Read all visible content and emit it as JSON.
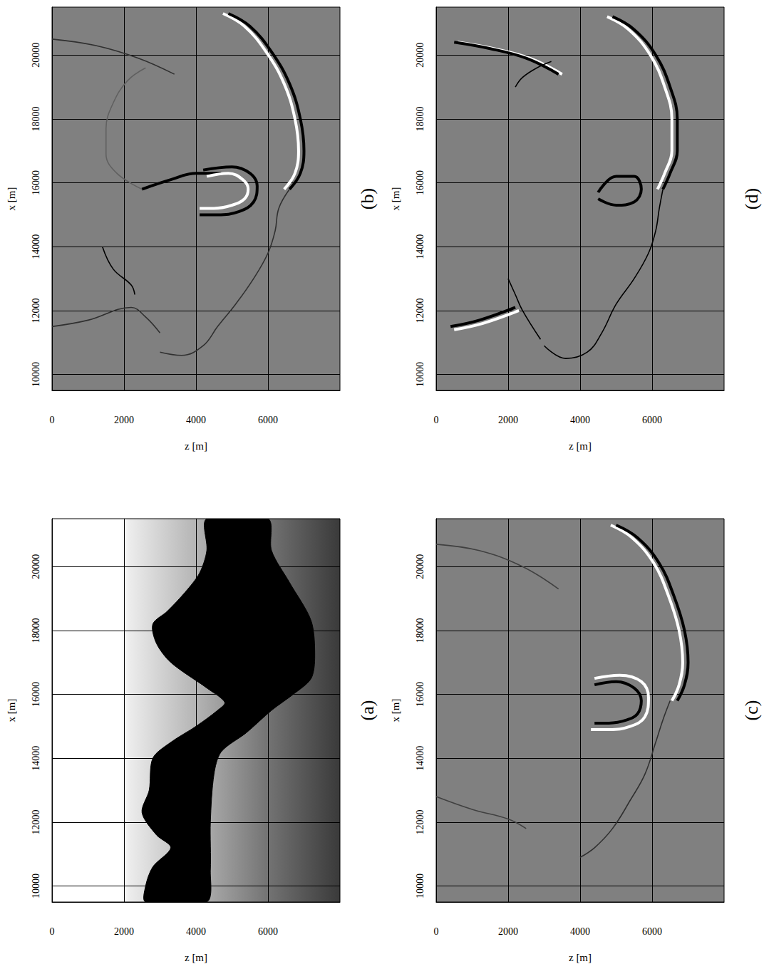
{
  "chart_data": [
    {
      "type": "area",
      "title": "(a)",
      "xlabel": "z [m]",
      "ylabel": "x [m]",
      "xlim": [
        0,
        8000
      ],
      "ylim": [
        9500,
        21500
      ],
      "xticks": [
        0,
        2000,
        4000,
        6000
      ],
      "yticks": [
        10000,
        12000,
        14000,
        16000,
        18000,
        20000
      ],
      "grid": true,
      "series": [
        {
          "color": "#000000",
          "x": [
            4300,
            6000,
            6100,
            6600,
            7200,
            7300,
            7200,
            6700,
            6100,
            5400,
            4700,
            4500,
            4400,
            4400,
            4300,
            2600,
            2600,
            2800,
            3300,
            2900,
            2500,
            2700,
            2800,
            3300,
            4000,
            4600,
            4800,
            4300,
            3300,
            2900,
            2800,
            3200,
            3700,
            4100,
            4300
          ],
          "values": [
            21500,
            21500,
            20500,
            19500,
            18300,
            17200,
            16500,
            16000,
            15500,
            14800,
            14200,
            13500,
            12000,
            10500,
            9500,
            9500,
            10000,
            10600,
            11200,
            11600,
            12300,
            13000,
            14000,
            14500,
            15000,
            15500,
            15750,
            16200,
            17000,
            17600,
            18200,
            18600,
            19200,
            19800,
            20500
          ]
        }
      ]
    },
    {
      "type": "line",
      "title": "(b)",
      "xlabel": "z [m]",
      "ylabel": "x [m]",
      "xlim": [
        0,
        8000
      ],
      "ylim": [
        9500,
        21500
      ],
      "xticks": [
        0,
        2000,
        4000,
        6000
      ],
      "yticks": [
        10000,
        12000,
        14000,
        16000,
        18000,
        20000
      ],
      "grid": true,
      "series": [
        {
          "color": "#ffffff",
          "line_style": "bold",
          "x": [
            4750,
            5350,
            5950,
            6450,
            6750,
            6850,
            6750,
            6450
          ],
          "values": [
            21300,
            20900,
            20100,
            19100,
            18000,
            17000,
            16300,
            15800
          ]
        },
        {
          "color": "#000000",
          "line_style": "bold",
          "x": [
            4900,
            5500,
            6100,
            6600,
            6900,
            7000,
            6900,
            6600
          ],
          "values": [
            21300,
            20900,
            20100,
            19100,
            18000,
            17000,
            16300,
            15800
          ]
        },
        {
          "color": "#303030",
          "line_style": "faint",
          "x": [
            6600,
            6300,
            6200,
            6000,
            5600,
            5100,
            4600,
            4200,
            3600,
            3000
          ],
          "values": [
            15800,
            15200,
            14500,
            13800,
            13000,
            12200,
            11500,
            10900,
            10600,
            10700
          ]
        },
        {
          "color": "#303030",
          "line_style": "faint",
          "x": [
            0,
            1200,
            2400,
            3400
          ],
          "values": [
            20500,
            20300,
            19900,
            19400
          ]
        },
        {
          "color": "#606060",
          "line_style": "faint",
          "x": [
            2600,
            2100,
            1700,
            1500,
            1500,
            1800,
            2500
          ],
          "values": [
            19600,
            19200,
            18500,
            17700,
            16900,
            16300,
            15800
          ]
        },
        {
          "color": "#000000",
          "line_style": "bold",
          "x": [
            2500,
            3300,
            4000,
            4700
          ],
          "values": [
            15800,
            16100,
            16300,
            16300
          ]
        },
        {
          "color": "#000000",
          "line_style": "bold",
          "x": [
            4200,
            5000,
            5500,
            5700,
            5600,
            5200,
            4600,
            4100
          ],
          "values": [
            16400,
            16500,
            16300,
            15900,
            15400,
            15100,
            15000,
            15000
          ]
        },
        {
          "color": "#ffffff",
          "line_style": "bold",
          "x": [
            4300,
            4900,
            5300,
            5450,
            5350,
            5000,
            4500,
            4100
          ],
          "values": [
            16200,
            16300,
            16100,
            15800,
            15500,
            15300,
            15200,
            15200
          ]
        },
        {
          "color": "#303030",
          "line_style": "faint",
          "x": [
            0,
            1000,
            2200,
            2600,
            3000
          ],
          "values": [
            11500,
            11700,
            12100,
            11800,
            11300
          ]
        },
        {
          "color": "#000000",
          "line_style": "faint",
          "x": [
            1400,
            1700,
            2200,
            2300
          ],
          "values": [
            14000,
            13300,
            12800,
            12500
          ]
        }
      ]
    },
    {
      "type": "line",
      "title": "(c)",
      "xlabel": "z [m]",
      "ylabel": "x [m]",
      "xlim": [
        0,
        8000
      ],
      "ylim": [
        9500,
        21500
      ],
      "xticks": [
        0,
        2000,
        4000,
        6000
      ],
      "yticks": [
        10000,
        12000,
        14000,
        16000,
        18000,
        20000
      ],
      "grid": true,
      "series": [
        {
          "color": "#ffffff",
          "line_style": "bold",
          "x": [
            4850,
            5450,
            6050,
            6450,
            6750,
            6850,
            6750,
            6550
          ],
          "values": [
            21300,
            20900,
            20100,
            19100,
            18000,
            17000,
            16300,
            15800
          ]
        },
        {
          "color": "#000000",
          "line_style": "bold",
          "x": [
            5000,
            5600,
            6200,
            6600,
            6900,
            7000,
            6900,
            6700
          ],
          "values": [
            21300,
            20900,
            20100,
            19100,
            18000,
            17000,
            16300,
            15800
          ]
        },
        {
          "color": "#ffffff",
          "line_style": "bold",
          "x": [
            4400,
            5100,
            5700,
            5900,
            5800,
            5400,
            4800,
            4300
          ],
          "values": [
            16500,
            16600,
            16400,
            15900,
            15300,
            15000,
            14900,
            14900
          ]
        },
        {
          "color": "#000000",
          "line_style": "bold",
          "x": [
            4400,
            5000,
            5500,
            5700,
            5600,
            5300,
            4800,
            4400
          ],
          "values": [
            16300,
            16400,
            16200,
            15800,
            15400,
            15200,
            15100,
            15100
          ]
        },
        {
          "color": "#303030",
          "line_style": "faint",
          "x": [
            6500,
            6300,
            6100,
            5800,
            5400,
            4900,
            4400,
            4000
          ],
          "values": [
            15800,
            15200,
            14500,
            13500,
            12700,
            11800,
            11200,
            10900
          ]
        },
        {
          "color": "#404040",
          "line_style": "faint",
          "x": [
            0,
            1200,
            2400,
            3400
          ],
          "values": [
            20700,
            20500,
            20000,
            19300
          ]
        },
        {
          "color": "#404040",
          "line_style": "faint",
          "x": [
            0,
            1000,
            2000,
            2500
          ],
          "values": [
            12800,
            12400,
            12100,
            11800
          ]
        }
      ]
    },
    {
      "type": "line",
      "title": "(d)",
      "xlabel": "z [m]",
      "ylabel": "x [m]",
      "xlim": [
        0,
        8000
      ],
      "ylim": [
        9500,
        21500
      ],
      "xticks": [
        0,
        2000,
        4000,
        6000
      ],
      "yticks": [
        10000,
        12000,
        14000,
        16000,
        18000,
        20000
      ],
      "grid": true,
      "series": [
        {
          "color": "#ffffff",
          "line_style": "bold",
          "x": [
            600,
            1600,
            2600,
            3500
          ],
          "values": [
            20400,
            20200,
            19900,
            19400
          ]
        },
        {
          "color": "#000000",
          "line_style": "bold",
          "x": [
            500,
            1500,
            2500,
            3400
          ],
          "values": [
            20400,
            20200,
            19900,
            19400
          ]
        },
        {
          "color": "#000000",
          "line_style": "faint",
          "x": [
            2200,
            2400,
            2800,
            3200
          ],
          "values": [
            19000,
            19300,
            19600,
            19800
          ]
        },
        {
          "color": "#ffffff",
          "line_style": "bold",
          "x": [
            4750,
            5350,
            5950,
            6350,
            6550,
            6550,
            6350,
            6150
          ],
          "values": [
            21200,
            20800,
            20000,
            19000,
            18000,
            17000,
            16300,
            15800
          ]
        },
        {
          "color": "#000000",
          "line_style": "bold",
          "x": [
            4900,
            5500,
            6100,
            6500,
            6700,
            6700,
            6500,
            6300
          ],
          "values": [
            21200,
            20800,
            20000,
            19000,
            18000,
            17000,
            16300,
            15800
          ]
        },
        {
          "color": "#000000",
          "line_style": "faint",
          "x": [
            6300,
            6200,
            6100,
            5900,
            5500,
            5000,
            4600,
            4200,
            3600,
            3000
          ],
          "values": [
            15800,
            15200,
            14500,
            13800,
            13000,
            12200,
            11300,
            10700,
            10500,
            10900
          ]
        },
        {
          "color": "#000000",
          "line_style": "bold",
          "x": [
            4500,
            5000,
            5500,
            5700,
            5500,
            5000,
            4500
          ],
          "values": [
            15700,
            16200,
            16200,
            15800,
            15400,
            15300,
            15500
          ]
        },
        {
          "color": "#ffffff",
          "line_style": "bold",
          "x": [
            500,
            1300,
            2300
          ],
          "values": [
            11400,
            11600,
            12000
          ]
        },
        {
          "color": "#000000",
          "line_style": "bold",
          "x": [
            400,
            1200,
            2200
          ],
          "values": [
            11500,
            11700,
            12100
          ]
        },
        {
          "color": "#000000",
          "line_style": "faint",
          "x": [
            2000,
            2200,
            2400,
            2900
          ],
          "values": [
            13000,
            12500,
            12000,
            11100
          ]
        }
      ]
    }
  ]
}
